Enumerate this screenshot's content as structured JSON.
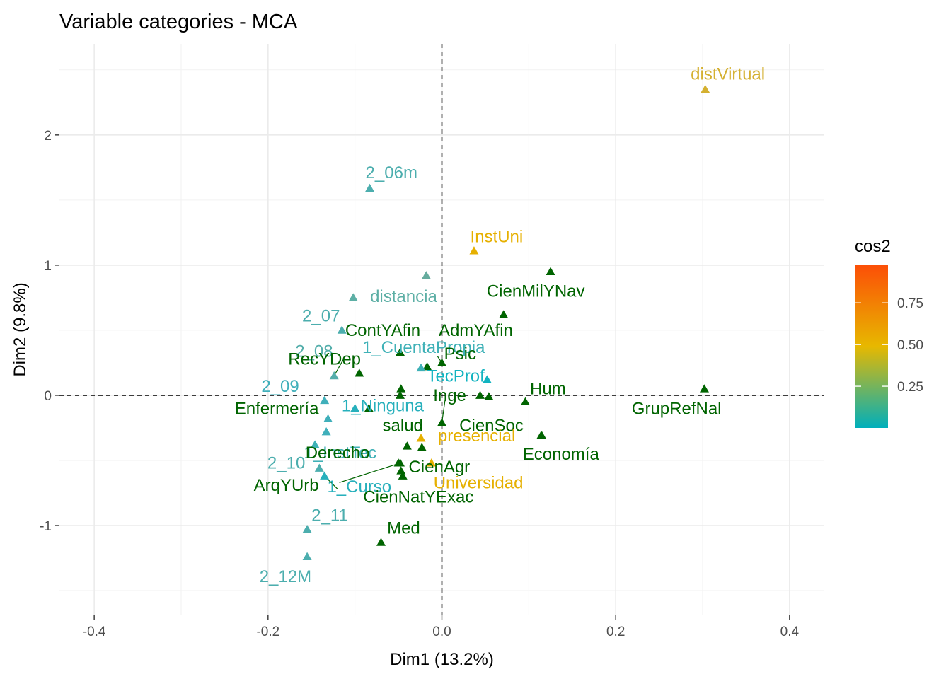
{
  "chart_data": {
    "type": "scatter",
    "title": "Variable categories - MCA",
    "xlabel": "Dim1 (13.2%)",
    "ylabel": "Dim2 (9.8%)",
    "xlim": [
      -0.44,
      0.44
    ],
    "ylim": [
      -1.69,
      2.7
    ],
    "x_ticks": [
      -0.4,
      -0.2,
      0.0,
      0.2,
      0.4
    ],
    "x_tick_labels": [
      "-0.4",
      "-0.2",
      "0.0",
      "0.2",
      "0.4"
    ],
    "y_ticks": [
      -1,
      0,
      1,
      2
    ],
    "y_tick_labels": [
      "-1",
      "0",
      "1",
      "2"
    ],
    "grid": true,
    "reference_lines": {
      "x": 0,
      "y": 0,
      "style": "dashed"
    },
    "legend": {
      "title": "cos2",
      "position": "right",
      "type": "gradient",
      "range": [
        0.0,
        0.98
      ],
      "ticks": [
        0.25,
        0.5,
        0.75
      ],
      "tick_labels": [
        "0.25",
        "0.50",
        "0.75"
      ],
      "colors": [
        "#00AFBB",
        "#E7B800",
        "#FC4E07"
      ]
    },
    "points": [
      {
        "label": "distVirtual",
        "x": 0.303,
        "y": 2.35,
        "color": "#D4B030",
        "lx": 0.329,
        "ly": 2.47
      },
      {
        "label": "2_06m",
        "x": -0.083,
        "y": 1.59,
        "color": "#4CAEAE",
        "lx": -0.058,
        "ly": 1.71
      },
      {
        "label": "InstUni",
        "x": 0.037,
        "y": 1.11,
        "color": "#E6B000",
        "lx": 0.063,
        "ly": 1.22
      },
      {
        "label": "",
        "x": -0.018,
        "y": 0.92,
        "color": "#66AC9E"
      },
      {
        "label": "",
        "x": 0.125,
        "y": 0.95,
        "color": "#006400"
      },
      {
        "label": "CienMilYNav",
        "x": 0.071,
        "y": 0.62,
        "color": "#006400",
        "lx": 0.108,
        "ly": 0.8
      },
      {
        "label": "distancia",
        "x": -0.102,
        "y": 0.75,
        "color": "#5DAFA5",
        "lx": -0.044,
        "ly": 0.76
      },
      {
        "label": "2_07",
        "x": -0.115,
        "y": 0.5,
        "color": "#4CAEAE",
        "lx": -0.139,
        "ly": 0.61
      },
      {
        "label": "ContYAfin",
        "x": -0.048,
        "y": 0.33,
        "color": "#006400",
        "lx": -0.068,
        "ly": 0.5
      },
      {
        "label": "AdmYAfin",
        "x": -0.017,
        "y": 0.22,
        "color": "#006400",
        "lx": 0.039,
        "ly": 0.5
      },
      {
        "label": "1_CuentaPropia",
        "x": -0.024,
        "y": 0.21,
        "color": "#3FB1B7",
        "lx": -0.021,
        "ly": 0.37
      },
      {
        "label": "2_08",
        "x": -0.124,
        "y": 0.15,
        "color": "#54AEAB",
        "lx": -0.147,
        "ly": 0.34
      },
      {
        "label": "Psic",
        "x": 0.0,
        "y": 0.25,
        "color": "#006400",
        "lx": 0.021,
        "ly": 0.32
      },
      {
        "label": "RecYDep",
        "x": -0.095,
        "y": 0.17,
        "color": "#006400",
        "lx": -0.135,
        "ly": 0.28
      },
      {
        "label": "TecProf",
        "x": 0.052,
        "y": 0.12,
        "color": "#11B3C0",
        "lx": 0.016,
        "ly": 0.15
      },
      {
        "label": "2_09",
        "x": -0.135,
        "y": -0.04,
        "color": "#3FAFBA",
        "lx": -0.186,
        "ly": 0.07
      },
      {
        "label": "Hum",
        "x": 0.096,
        "y": -0.05,
        "color": "#006400",
        "lx": 0.122,
        "ly": 0.05
      },
      {
        "label": "GrupRefNal",
        "x": 0.302,
        "y": 0.05,
        "color": "#006400",
        "lx": 0.27,
        "ly": -0.1
      },
      {
        "label": "Inge",
        "x": 0.044,
        "y": 0.0,
        "color": "#006400",
        "lx": 0.009,
        "ly": 0.0
      },
      {
        "label": "",
        "x": 0.054,
        "y": -0.01,
        "color": "#006400"
      },
      {
        "label": "",
        "x": -0.047,
        "y": 0.05,
        "color": "#006400"
      },
      {
        "label": "",
        "x": -0.048,
        "y": 0.0,
        "color": "#006400"
      },
      {
        "label": "1_Ninguna",
        "x": -0.1,
        "y": -0.1,
        "color": "#27B0BC",
        "lx": -0.068,
        "ly": -0.08
      },
      {
        "label": "Enfermería",
        "x": -0.084,
        "y": -0.1,
        "color": "#006400",
        "lx": -0.19,
        "ly": -0.1
      },
      {
        "label": "salud",
        "x": 0.0,
        "y": -0.21,
        "color": "#006400",
        "lx": -0.045,
        "ly": -0.23
      },
      {
        "label": "CienSoc",
        "x": 0.114,
        "y": -0.31,
        "color": "#006400",
        "lx": 0.057,
        "ly": -0.23
      },
      {
        "label": "presencial",
        "x": -0.024,
        "y": -0.33,
        "color": "#E6B000",
        "lx": 0.04,
        "ly": -0.31
      },
      {
        "label": "Economía",
        "x": 0.115,
        "y": -0.31,
        "color": "#006400",
        "lx": 0.137,
        "ly": -0.45
      },
      {
        "label": "",
        "x": -0.04,
        "y": -0.39,
        "color": "#006400"
      },
      {
        "label": "",
        "x": -0.023,
        "y": -0.4,
        "color": "#006400"
      },
      {
        "label": "",
        "x": -0.133,
        "y": -0.28,
        "color": "#3FAFBA"
      },
      {
        "label": "",
        "x": -0.131,
        "y": -0.18,
        "color": "#3FAFBA"
      },
      {
        "label": "1_InstTec",
        "x": -0.146,
        "y": -0.38,
        "color": "#3FB1B7",
        "lx": -0.117,
        "ly": -0.44
      },
      {
        "label": "Derecho",
        "x": -0.05,
        "y": -0.52,
        "color": "#006400",
        "lx": -0.12,
        "ly": -0.44
      },
      {
        "label": "2_10",
        "x": -0.141,
        "y": -0.56,
        "color": "#4CAEAE",
        "lx": -0.179,
        "ly": -0.52
      },
      {
        "label": "CienAgr",
        "x": -0.047,
        "y": -0.58,
        "color": "#006400",
        "lx": -0.003,
        "ly": -0.55
      },
      {
        "label": "Universidad",
        "x": -0.012,
        "y": -0.52,
        "color": "#E6B000",
        "lx": 0.042,
        "ly": -0.67
      },
      {
        "label": "ArqYUrb",
        "x": -0.048,
        "y": -0.52,
        "color": "#006400",
        "lx": -0.179,
        "ly": -0.69
      },
      {
        "label": "1_Curso",
        "x": -0.135,
        "y": -0.62,
        "color": "#27B0BC",
        "lx": -0.095,
        "ly": -0.7
      },
      {
        "label": "CienNatYExac",
        "x": -0.045,
        "y": -0.62,
        "color": "#006400",
        "lx": -0.027,
        "ly": -0.78
      },
      {
        "label": "2_11",
        "x": -0.155,
        "y": -1.03,
        "color": "#4CAEAE",
        "lx": -0.129,
        "ly": -0.92
      },
      {
        "label": "Med",
        "x": -0.07,
        "y": -1.13,
        "color": "#006400",
        "lx": -0.044,
        "ly": -1.02
      },
      {
        "label": "2_12M",
        "x": -0.155,
        "y": -1.24,
        "color": "#4CAEAE",
        "lx": -0.18,
        "ly": -1.39
      }
    ],
    "connectors": [
      {
        "from": [
          -0.124,
          0.15
        ],
        "to": [
          -0.113,
          0.28
        ]
      },
      {
        "from": [
          0.0,
          0.25
        ],
        "to": [
          -0.005,
          0.3
        ]
      },
      {
        "from": [
          0.0,
          -0.21
        ],
        "to": [
          0.004,
          -0.02
        ]
      },
      {
        "from": [
          -0.048,
          -0.52
        ],
        "to": [
          -0.118,
          -0.67
        ]
      },
      {
        "from": [
          -0.135,
          -0.62
        ],
        "to": [
          -0.12,
          -0.72
        ]
      }
    ]
  }
}
